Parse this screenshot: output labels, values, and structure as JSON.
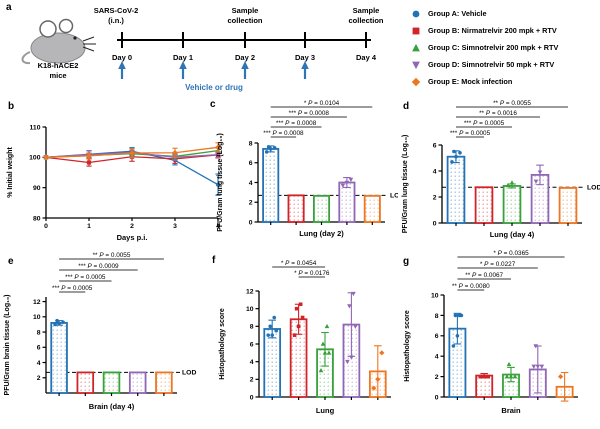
{
  "panel_labels": {
    "a": "a",
    "b": "b",
    "c": "c",
    "d": "d",
    "e": "e",
    "f": "f",
    "g": "g"
  },
  "groups": [
    {
      "label": "Group A: Vehicle",
      "color": "#2272b5",
      "marker": "circle"
    },
    {
      "label": "Group B: Nirmatrelvir 200 mpk + RTV",
      "color": "#d02428",
      "marker": "square"
    },
    {
      "label": "Group C: Simnotrelvir 200 mpk + RTV",
      "color": "#39a03a",
      "marker": "triangle-up"
    },
    {
      "label": "Group D: Simnotrelvir 50 mpk + RTV",
      "color": "#9067b7",
      "marker": "triangle-down"
    },
    {
      "label": "Group E: Mock infection",
      "color": "#ec7622",
      "marker": "diamond"
    }
  ],
  "timeline": {
    "mouse_label_lines": [
      "K18-hACE2",
      "mice"
    ],
    "infection_label_lines": [
      "SARS-CoV-2",
      "(i.n.)"
    ],
    "infection_day": 0,
    "sample_label_lines": [
      "Sample",
      "collection"
    ],
    "sample_days": [
      2,
      4
    ],
    "days": [
      "Day 0",
      "Day 1",
      "Day 2",
      "Day 3",
      "Day 4"
    ],
    "arrow_days": [
      0,
      1,
      2,
      3
    ],
    "treatment_label": "Vehicle or drug",
    "arrow_color": "#2e75b6"
  },
  "chart_data": [
    {
      "id": "b",
      "type": "line",
      "title": "",
      "xlabel": "Days p.i.",
      "ylabel": "% Initial weight",
      "x": [
        0,
        1,
        2,
        3,
        4
      ],
      "xticks": [
        0,
        1,
        2,
        3,
        4
      ],
      "ylim": [
        80,
        110
      ],
      "yticks": [
        80,
        90,
        100,
        110
      ],
      "series": [
        {
          "name": "Group A: Vehicle",
          "values": [
            100,
            101,
            102,
            99,
            91
          ],
          "errors": [
            0,
            1.2,
            1.2,
            1.5,
            3.5
          ]
        },
        {
          "name": "Group B: Nirmatrelvir 200 mpk + RTV",
          "values": [
            100,
            98.3,
            100.2,
            99.5,
            100.8
          ],
          "errors": [
            0,
            1.2,
            1.5,
            1.5,
            1.0
          ]
        },
        {
          "name": "Group C: Simnotrelvir 200 mpk + RTV",
          "values": [
            100,
            100.6,
            101.2,
            100.3,
            102.2
          ],
          "errors": [
            0,
            0.8,
            1.0,
            1.0,
            1.0
          ]
        },
        {
          "name": "Group D: Simnotrelvir 50 mpk + RTV",
          "values": [
            100,
            100.9,
            101.6,
            100.0,
            100.9
          ],
          "errors": [
            0,
            1.2,
            1.2,
            1.0,
            1.0
          ]
        },
        {
          "name": "Group E: Mock infection",
          "values": [
            100,
            100.5,
            101.4,
            101.5,
            103.3
          ],
          "errors": [
            0,
            0.8,
            1.5,
            1.5,
            1.5
          ]
        }
      ]
    },
    {
      "id": "c",
      "type": "bar",
      "xlabel": "Lung (day 2)",
      "ylabel": "PFU/Gram lung tissue (Log₁₀)",
      "categories": [
        "Group A",
        "Group B",
        "Group C",
        "Group D",
        "Group E"
      ],
      "ylim": [
        0,
        8
      ],
      "yticks": [
        0,
        2,
        4,
        6,
        8
      ],
      "values": [
        7.4,
        2.7,
        2.65,
        4.0,
        2.65
      ],
      "errors": [
        0.3,
        0,
        0,
        0.5,
        0
      ],
      "points": [
        [
          7.1,
          7.4,
          7.5,
          7.6
        ],
        [],
        [],
        [
          3.7,
          4.0,
          4.3
        ],
        []
      ],
      "lod": 2.7,
      "lod_label": "LOD",
      "brackets": [
        {
          "from": 0,
          "to": 4,
          "label": "* P = 0.0104"
        },
        {
          "from": 0,
          "to": 3,
          "label": "*** P = 0.0008"
        },
        {
          "from": 0,
          "to": 2,
          "label": "*** P = 0.0008"
        },
        {
          "from": 0,
          "to": 1,
          "label": "*** P = 0.0008"
        }
      ]
    },
    {
      "id": "d",
      "type": "bar",
      "xlabel": "Lung (day 4)",
      "ylabel": "PFU/Gram lung tissue (Log₁₀)",
      "categories": [
        "Group A",
        "Group B",
        "Group C",
        "Group D",
        "Group E"
      ],
      "ylim": [
        0,
        6
      ],
      "yticks": [
        0,
        2,
        4,
        6
      ],
      "values": [
        5.1,
        2.75,
        2.85,
        3.7,
        2.7
      ],
      "errors": [
        0.45,
        0,
        0.15,
        0.75,
        0
      ],
      "points": [
        [
          4.7,
          5.1,
          5.4,
          5.5
        ],
        [],
        [
          2.9,
          3.1
        ],
        [
          3.2,
          3.9
        ],
        []
      ],
      "lod": 2.75,
      "lod_label": "LOD",
      "brackets": [
        {
          "from": 0,
          "to": 4,
          "label": "** P = 0.0055"
        },
        {
          "from": 0,
          "to": 3,
          "label": "** P = 0.0016"
        },
        {
          "from": 0,
          "to": 2,
          "label": "*** P = 0.0005"
        },
        {
          "from": 0,
          "to": 1,
          "label": "*** P = 0.0005"
        }
      ]
    },
    {
      "id": "e",
      "type": "bar",
      "xlabel": "Brain (day 4)",
      "ylabel": "PFU/Gram brain tissue (Log₁₀)",
      "categories": [
        "Group A",
        "Group B",
        "Group C",
        "Group D",
        "Group E"
      ],
      "ylim": [
        0,
        12.6
      ],
      "yticks": [
        2,
        4,
        6,
        8,
        10,
        12
      ],
      "values": [
        9.2,
        2.7,
        2.7,
        2.7,
        2.7
      ],
      "errors": [
        0.3,
        0,
        0,
        0,
        0
      ],
      "points": [
        [
          9.0,
          9.1,
          9.3,
          9.5
        ],
        [],
        [],
        [],
        []
      ],
      "lod": 2.7,
      "lod_label": "LOD",
      "brackets": [
        {
          "from": 0,
          "to": 4,
          "label": "** P = 0.0055"
        },
        {
          "from": 0,
          "to": 3,
          "label": "*** P = 0.0009"
        },
        {
          "from": 0,
          "to": 2,
          "label": "*** P = 0.0005"
        },
        {
          "from": 0,
          "to": 1,
          "label": "*** P = 0.0005"
        }
      ]
    },
    {
      "id": "f",
      "type": "bar",
      "xlabel": "Lung",
      "ylabel": "Histopathology score",
      "categories": [
        "Group A",
        "Group B",
        "Group C",
        "Group D",
        "Group E"
      ],
      "ylim": [
        0,
        12
      ],
      "yticks": [
        0,
        2,
        4,
        6,
        8,
        10,
        12
      ],
      "values": [
        7.7,
        8.8,
        5.4,
        8.2,
        2.9
      ],
      "errors": [
        1.0,
        1.7,
        1.9,
        3.6,
        2.9
      ],
      "points": [
        [
          7,
          7,
          7.5,
          8,
          9
        ],
        [
          7,
          8,
          9,
          10,
          10.5
        ],
        [
          3,
          5,
          5,
          6,
          8
        ],
        [
          4,
          4.5,
          8,
          10.3,
          11.7
        ],
        [
          1,
          2,
          5
        ]
      ],
      "brackets": [
        {
          "from": 0,
          "to": 2,
          "label": "* P = 0.0454"
        },
        {
          "from": 1,
          "to": 2,
          "label": "* P = 0.0176"
        }
      ]
    },
    {
      "id": "g",
      "type": "bar",
      "xlabel": "Brain",
      "ylabel": "Histopathology score",
      "categories": [
        "Group A",
        "Group B",
        "Group C",
        "Group D",
        "Group E"
      ],
      "ylim": [
        0,
        10
      ],
      "yticks": [
        0,
        2,
        4,
        6,
        8,
        10
      ],
      "values": [
        6.7,
        2.1,
        2.2,
        2.7,
        1.0
      ],
      "errors": [
        1.5,
        0.2,
        0.7,
        2.3,
        1.4
      ],
      "points": [
        [
          5,
          6,
          8,
          8,
          8
        ],
        [
          2,
          2,
          2,
          2,
          2
        ],
        [
          2,
          2,
          2,
          3.2
        ],
        [
          3,
          3,
          3,
          5
        ],
        [
          2
        ]
      ],
      "brackets": [
        {
          "from": 0,
          "to": 4,
          "label": "* P = 0.0365"
        },
        {
          "from": 0,
          "to": 3,
          "label": "* P = 0.0227"
        },
        {
          "from": 0,
          "to": 2,
          "label": "** P = 0.0067"
        },
        {
          "from": 0,
          "to": 1,
          "label": "** P = 0.0080"
        }
      ]
    }
  ]
}
